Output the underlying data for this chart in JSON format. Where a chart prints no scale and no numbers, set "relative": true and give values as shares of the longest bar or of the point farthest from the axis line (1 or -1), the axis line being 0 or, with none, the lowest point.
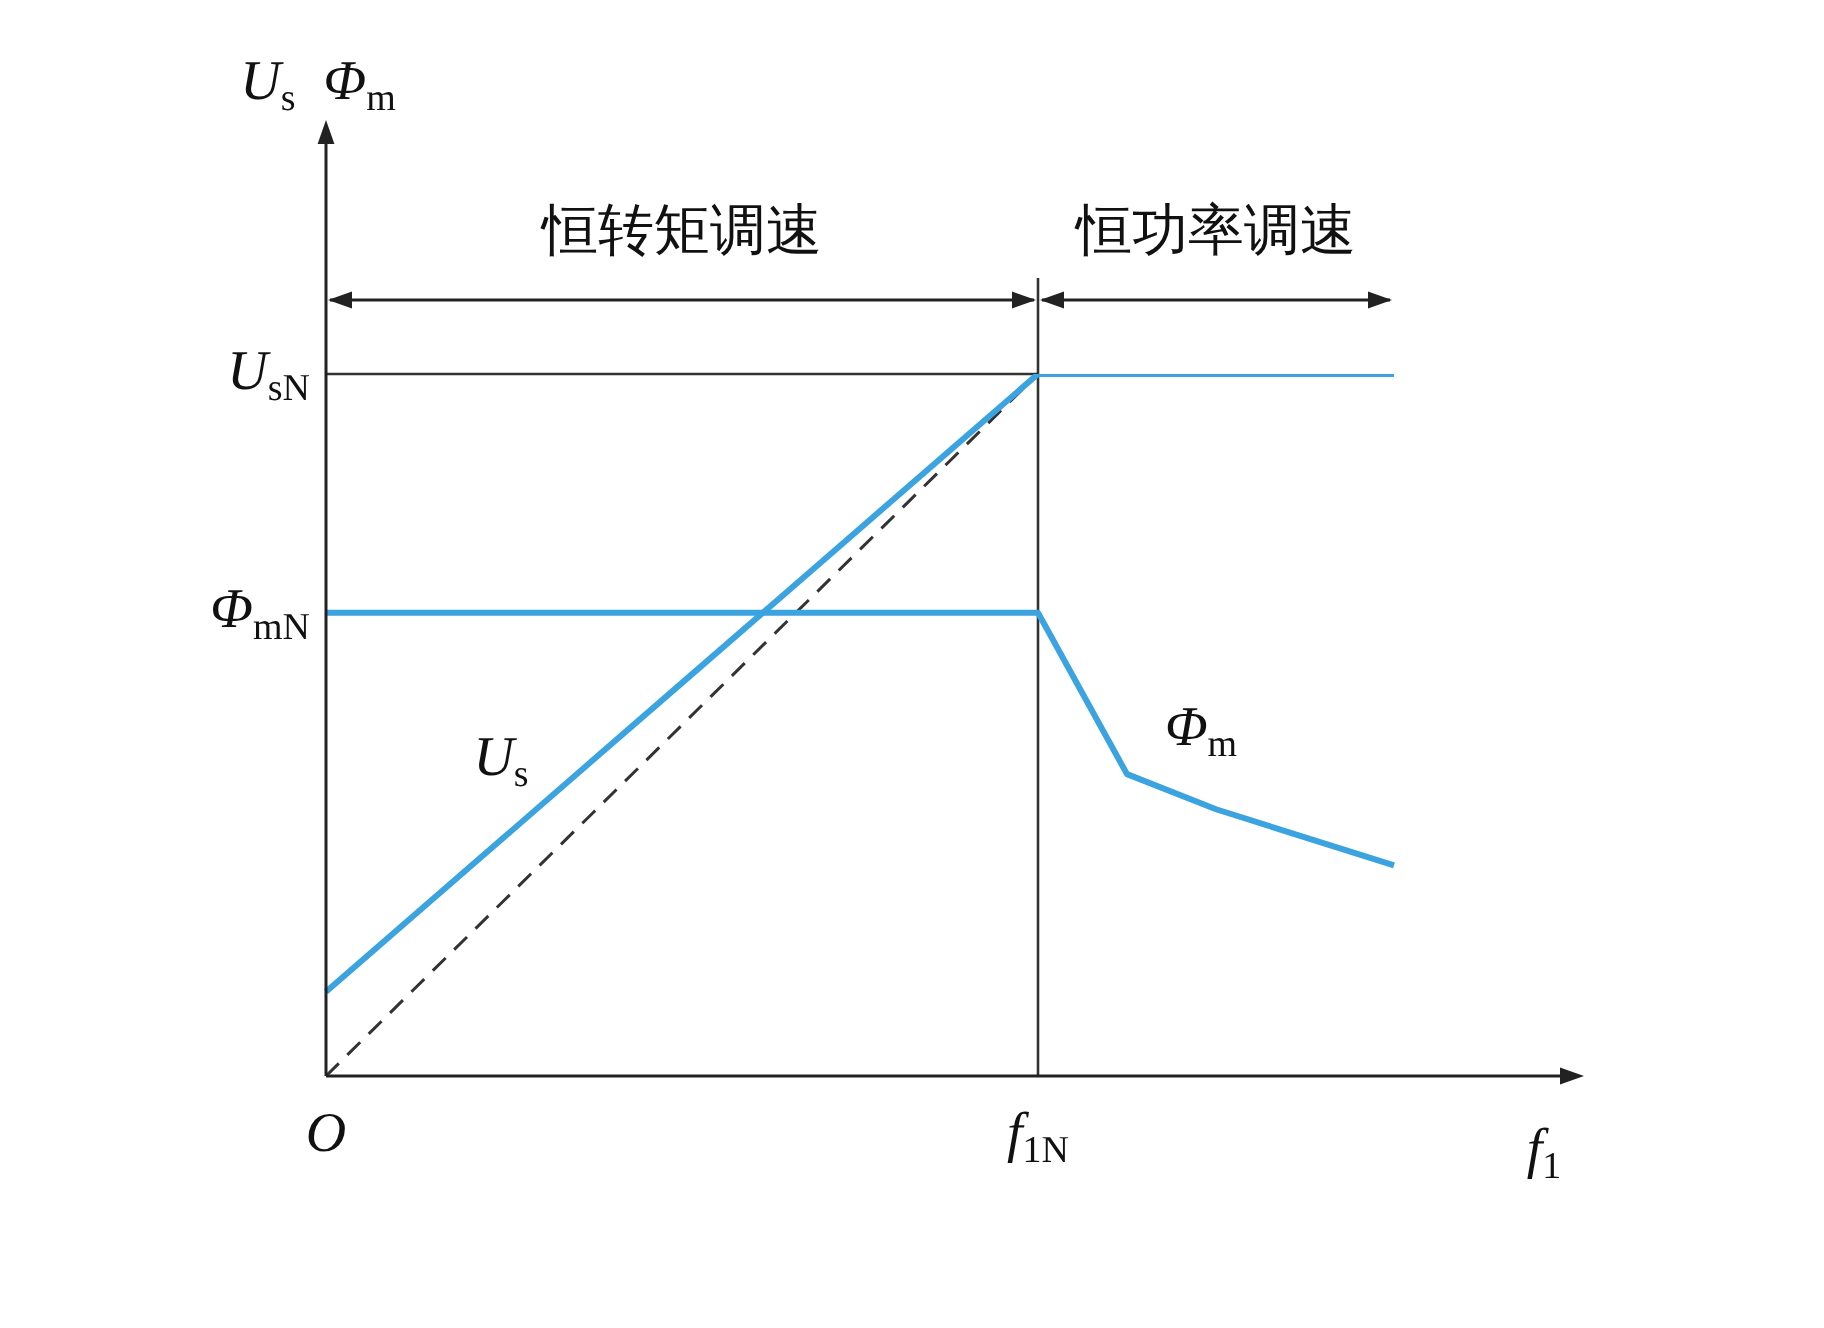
{
  "chart_data": {
    "type": "line",
    "relative": true,
    "xlabel": "f$_{1}$",
    "ylabel": "U$_{s}$  Φ$_{m}$",
    "grid": false,
    "legend": false,
    "marker": "none",
    "categories": [
      "O",
      null,
      null,
      null,
      null,
      null,
      null,
      null,
      "f$_{1N}$",
      null,
      null,
      null,
      null
    ],
    "series": [
      {
        "name": "U$_{s}$",
        "color": "#3aa3e0",
        "values": [
          0.12,
          0.23,
          0.34,
          0.45,
          0.56,
          0.67,
          0.78,
          0.89,
          1,
          1,
          1,
          1,
          1
        ]
      },
      {
        "name": "Φ$_{m}$",
        "color": "#3aa3e0",
        "values": [
          0.66,
          0.66,
          0.66,
          0.66,
          0.66,
          0.66,
          0.66,
          0.66,
          0.66,
          0.43,
          0.38,
          0.34,
          0.3
        ]
      },
      {
        "color": "#333333",
        "line_style": "dashed",
        "values": [
          0,
          0.125,
          0.25,
          0.375,
          0.5,
          0.625,
          0.75,
          0.875,
          1,
          null,
          null,
          null,
          null
        ]
      }
    ],
    "ref_lines": [
      {
        "axis": "x",
        "value": "f$_{1N}$",
        "color": "#333333"
      },
      {
        "axis": "y",
        "value": 1,
        "label": "U$_{sN}$",
        "color": "#333333"
      }
    ],
    "annotations": [
      {
        "text": "Φ$_{mN}$",
        "x": "O",
        "y": 0.66
      },
      "恒转矩调速",
      "恒功率调速"
    ]
  }
}
